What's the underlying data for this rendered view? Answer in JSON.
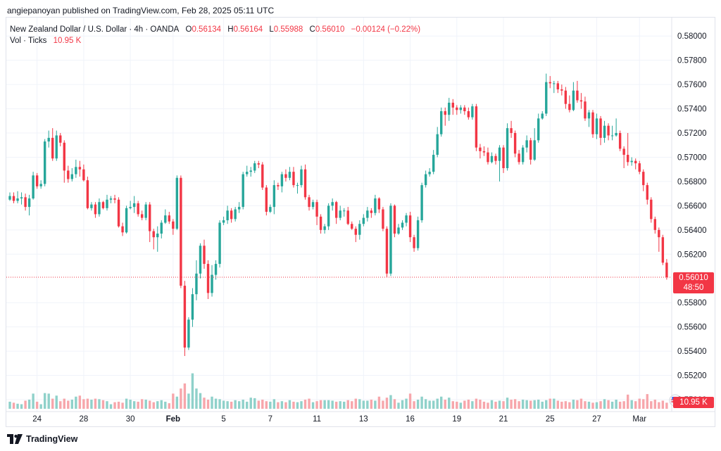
{
  "publisher_line": "angiepanoyan published on TradingView.com, Feb 28, 2025 05:11 UTC",
  "legend": {
    "symbol": "New Zealand Dollar / U.S. Dollar · 4h · OANDA",
    "o_label": "O",
    "o": "0.56134",
    "h_label": "H",
    "h": "0.56164",
    "l_label": "L",
    "l": "0.55988",
    "c_label": "C",
    "c": "0.56010",
    "change": "−0.00124 (−0.22%)",
    "vol_label": "Vol · Ticks",
    "vol_value": "10.95 K"
  },
  "price_tag": {
    "price": "0.56010",
    "countdown": "48:50"
  },
  "vol_tag": "10.95 K",
  "footer": {
    "brand": "TradingView"
  },
  "colors": {
    "up": "#26a69a",
    "down": "#f23645",
    "vol_up": "#8fd1ca",
    "vol_down": "#f7a6ab",
    "grid": "#f0f3fa",
    "axis_text": "#131722"
  },
  "chart_data": {
    "type": "candlestick",
    "timeframe": "4h",
    "ylim": [
      0.55,
      0.581
    ],
    "y_ticks": [
      "0.58000",
      "0.57800",
      "0.57600",
      "0.57400",
      "0.57200",
      "0.57000",
      "0.56800",
      "0.56600",
      "0.56400",
      "0.56200",
      "0.55800",
      "0.55600",
      "0.55400",
      "0.55200",
      "0.55000"
    ],
    "x_ticks": [
      {
        "label": "24",
        "i": 7
      },
      {
        "label": "28",
        "i": 19
      },
      {
        "label": "30",
        "i": 31
      },
      {
        "label": "Feb",
        "i": 42
      },
      {
        "label": "5",
        "i": 55
      },
      {
        "label": "7",
        "i": 67
      },
      {
        "label": "11",
        "i": 79
      },
      {
        "label": "13",
        "i": 91
      },
      {
        "label": "16",
        "i": 103
      },
      {
        "label": "19",
        "i": 115
      },
      {
        "label": "21",
        "i": 127
      },
      {
        "label": "25",
        "i": 139
      },
      {
        "label": "27",
        "i": 151
      },
      {
        "label": "Mar",
        "i": 162
      }
    ],
    "last_price": 0.5601,
    "candles": [
      [
        0.5665,
        0.5668,
        0.5671,
        0.5664,
        28
      ],
      [
        0.5668,
        0.5664,
        0.5671,
        0.5662,
        24
      ],
      [
        0.5664,
        0.5666,
        0.5672,
        0.5662,
        20
      ],
      [
        0.5666,
        0.5667,
        0.5671,
        0.5661,
        18
      ],
      [
        0.5667,
        0.5659,
        0.567,
        0.5656,
        32
      ],
      [
        0.5659,
        0.5666,
        0.5669,
        0.5652,
        36
      ],
      [
        0.5666,
        0.5685,
        0.5688,
        0.5665,
        60
      ],
      [
        0.5685,
        0.5676,
        0.5687,
        0.5674,
        28
      ],
      [
        0.5676,
        0.5678,
        0.5681,
        0.5674,
        18
      ],
      [
        0.5678,
        0.5713,
        0.5715,
        0.5676,
        62
      ],
      [
        0.5713,
        0.5716,
        0.5722,
        0.5708,
        60
      ],
      [
        0.5716,
        0.5699,
        0.5724,
        0.5697,
        40
      ],
      [
        0.5699,
        0.5718,
        0.5722,
        0.5697,
        52
      ],
      [
        0.5718,
        0.5712,
        0.572,
        0.5709,
        30
      ],
      [
        0.5712,
        0.5689,
        0.5714,
        0.5679,
        40
      ],
      [
        0.5689,
        0.5682,
        0.5693,
        0.5679,
        32
      ],
      [
        0.5682,
        0.5686,
        0.5691,
        0.568,
        36
      ],
      [
        0.5686,
        0.5692,
        0.5698,
        0.5683,
        48
      ],
      [
        0.5692,
        0.569,
        0.5697,
        0.5684,
        52
      ],
      [
        0.569,
        0.5681,
        0.5694,
        0.568,
        38
      ],
      [
        0.5681,
        0.5658,
        0.5684,
        0.5657,
        40
      ],
      [
        0.5658,
        0.5661,
        0.5663,
        0.5656,
        36
      ],
      [
        0.5661,
        0.5653,
        0.5663,
        0.565,
        40
      ],
      [
        0.5653,
        0.5663,
        0.5666,
        0.5651,
        38
      ],
      [
        0.5663,
        0.5658,
        0.5664,
        0.5657,
        34
      ],
      [
        0.5658,
        0.5665,
        0.5669,
        0.5656,
        30
      ],
      [
        0.5665,
        0.5666,
        0.5668,
        0.5662,
        18
      ],
      [
        0.5666,
        0.5665,
        0.5669,
        0.5662,
        26
      ],
      [
        0.5665,
        0.5643,
        0.5667,
        0.5642,
        28
      ],
      [
        0.5643,
        0.5638,
        0.5646,
        0.5635,
        24
      ],
      [
        0.5638,
        0.5658,
        0.566,
        0.5637,
        40
      ],
      [
        0.5658,
        0.5659,
        0.5664,
        0.5657,
        36
      ],
      [
        0.5659,
        0.5662,
        0.5668,
        0.5654,
        30
      ],
      [
        0.5662,
        0.5653,
        0.5664,
        0.5651,
        28
      ],
      [
        0.5653,
        0.565,
        0.5656,
        0.5648,
        38
      ],
      [
        0.565,
        0.5661,
        0.5663,
        0.5648,
        36
      ],
      [
        0.5661,
        0.5639,
        0.5663,
        0.563,
        32
      ],
      [
        0.5639,
        0.5634,
        0.5641,
        0.5624,
        26
      ],
      [
        0.5634,
        0.5637,
        0.5643,
        0.5622,
        30
      ],
      [
        0.5637,
        0.5646,
        0.5648,
        0.5633,
        34
      ],
      [
        0.5646,
        0.5652,
        0.5657,
        0.5645,
        28
      ],
      [
        0.5652,
        0.5647,
        0.5655,
        0.5645,
        22
      ],
      [
        0.5647,
        0.5641,
        0.5649,
        0.5636,
        60
      ],
      [
        0.5641,
        0.5683,
        0.5685,
        0.564,
        48
      ],
      [
        0.5683,
        0.5594,
        0.5685,
        0.5592,
        80
      ],
      [
        0.5594,
        0.5543,
        0.5598,
        0.5536,
        100
      ],
      [
        0.5543,
        0.5566,
        0.5568,
        0.5541,
        60
      ],
      [
        0.5566,
        0.5587,
        0.5592,
        0.556,
        140
      ],
      [
        0.5587,
        0.5604,
        0.5615,
        0.5582,
        80
      ],
      [
        0.5604,
        0.5627,
        0.5629,
        0.56,
        62
      ],
      [
        0.5627,
        0.5612,
        0.5632,
        0.5608,
        44
      ],
      [
        0.5612,
        0.5588,
        0.5615,
        0.5583,
        36
      ],
      [
        0.5588,
        0.5603,
        0.5611,
        0.5585,
        48
      ],
      [
        0.5603,
        0.5612,
        0.5615,
        0.5599,
        40
      ],
      [
        0.5612,
        0.5646,
        0.5648,
        0.5609,
        38
      ],
      [
        0.5646,
        0.5648,
        0.5651,
        0.5644,
        32
      ],
      [
        0.5648,
        0.5656,
        0.566,
        0.5645,
        30
      ],
      [
        0.5656,
        0.5649,
        0.5658,
        0.5646,
        28
      ],
      [
        0.5649,
        0.5657,
        0.5659,
        0.5647,
        34
      ],
      [
        0.5657,
        0.5659,
        0.5663,
        0.5654,
        30
      ],
      [
        0.5659,
        0.5686,
        0.5688,
        0.5657,
        36
      ],
      [
        0.5686,
        0.5688,
        0.5693,
        0.5684,
        28
      ],
      [
        0.5688,
        0.5689,
        0.5692,
        0.5684,
        44
      ],
      [
        0.5689,
        0.5695,
        0.5697,
        0.5687,
        42
      ],
      [
        0.5695,
        0.5694,
        0.5697,
        0.5691,
        32
      ],
      [
        0.5694,
        0.5675,
        0.5696,
        0.5673,
        36
      ],
      [
        0.5675,
        0.5655,
        0.5677,
        0.5652,
        30
      ],
      [
        0.5655,
        0.5659,
        0.5661,
        0.5654,
        28
      ],
      [
        0.5659,
        0.5677,
        0.5681,
        0.5653,
        38
      ],
      [
        0.5677,
        0.5676,
        0.5679,
        0.5673,
        26
      ],
      [
        0.5676,
        0.5686,
        0.5688,
        0.5671,
        30
      ],
      [
        0.5686,
        0.5683,
        0.569,
        0.568,
        26
      ],
      [
        0.5683,
        0.5688,
        0.5692,
        0.5681,
        34
      ],
      [
        0.5688,
        0.5677,
        0.5692,
        0.5675,
        28
      ],
      [
        0.5677,
        0.5677,
        0.5679,
        0.567,
        26
      ],
      [
        0.5677,
        0.569,
        0.5693,
        0.5675,
        30
      ],
      [
        0.569,
        0.5667,
        0.5694,
        0.5665,
        36
      ],
      [
        0.5667,
        0.5659,
        0.5669,
        0.5656,
        40
      ],
      [
        0.5659,
        0.5663,
        0.5665,
        0.5657,
        26
      ],
      [
        0.5663,
        0.5651,
        0.5665,
        0.5644,
        30
      ],
      [
        0.5651,
        0.564,
        0.5653,
        0.5637,
        34
      ],
      [
        0.564,
        0.5643,
        0.5645,
        0.5637,
        34
      ],
      [
        0.5643,
        0.566,
        0.5662,
        0.564,
        34
      ],
      [
        0.566,
        0.5663,
        0.5666,
        0.5656,
        32
      ],
      [
        0.5663,
        0.565,
        0.5664,
        0.5645,
        28
      ],
      [
        0.565,
        0.5656,
        0.566,
        0.5648,
        30
      ],
      [
        0.5656,
        0.5656,
        0.5658,
        0.5651,
        28
      ],
      [
        0.5656,
        0.5645,
        0.5659,
        0.5644,
        34
      ],
      [
        0.5645,
        0.5641,
        0.5647,
        0.564,
        30
      ],
      [
        0.5641,
        0.5636,
        0.5643,
        0.563,
        40
      ],
      [
        0.5636,
        0.5645,
        0.5648,
        0.5632,
        38
      ],
      [
        0.5645,
        0.565,
        0.5653,
        0.5643,
        32
      ],
      [
        0.565,
        0.5656,
        0.5659,
        0.5647,
        32
      ],
      [
        0.5656,
        0.5654,
        0.5658,
        0.565,
        36
      ],
      [
        0.5654,
        0.5666,
        0.5669,
        0.5652,
        32
      ],
      [
        0.5666,
        0.5657,
        0.5667,
        0.5654,
        48
      ],
      [
        0.5657,
        0.5641,
        0.5659,
        0.5639,
        32
      ],
      [
        0.5641,
        0.5604,
        0.5643,
        0.5601,
        44
      ],
      [
        0.5604,
        0.566,
        0.5662,
        0.5602,
        54
      ],
      [
        0.566,
        0.5637,
        0.5661,
        0.5634,
        38
      ],
      [
        0.5637,
        0.5642,
        0.5645,
        0.5636,
        24
      ],
      [
        0.5642,
        0.5646,
        0.5648,
        0.564,
        34
      ],
      [
        0.5646,
        0.5652,
        0.5654,
        0.5643,
        40
      ],
      [
        0.5652,
        0.5634,
        0.5655,
        0.563,
        60
      ],
      [
        0.5634,
        0.5625,
        0.5636,
        0.5622,
        30
      ],
      [
        0.5625,
        0.5648,
        0.5651,
        0.5623,
        36
      ],
      [
        0.5648,
        0.5677,
        0.5679,
        0.5646,
        48
      ],
      [
        0.5677,
        0.5686,
        0.5689,
        0.5675,
        38
      ],
      [
        0.5686,
        0.5688,
        0.5691,
        0.5684,
        32
      ],
      [
        0.5688,
        0.5702,
        0.5706,
        0.5686,
        32
      ],
      [
        0.5702,
        0.5719,
        0.5725,
        0.57,
        40
      ],
      [
        0.5719,
        0.5738,
        0.5741,
        0.5717,
        48
      ],
      [
        0.5738,
        0.5735,
        0.5741,
        0.5726,
        36
      ],
      [
        0.5735,
        0.5745,
        0.5749,
        0.573,
        44
      ],
      [
        0.5745,
        0.5741,
        0.5748,
        0.5735,
        30
      ],
      [
        0.5741,
        0.5739,
        0.5743,
        0.5735,
        28
      ],
      [
        0.5739,
        0.5741,
        0.5743,
        0.5736,
        24
      ],
      [
        0.5741,
        0.5738,
        0.5743,
        0.5735,
        32
      ],
      [
        0.5738,
        0.5733,
        0.5741,
        0.5731,
        36
      ],
      [
        0.5733,
        0.5742,
        0.5744,
        0.5731,
        30
      ],
      [
        0.5742,
        0.5708,
        0.5744,
        0.5705,
        40
      ],
      [
        0.5708,
        0.5705,
        0.5711,
        0.5699,
        36
      ],
      [
        0.5705,
        0.5704,
        0.5709,
        0.5701,
        28
      ],
      [
        0.5704,
        0.5696,
        0.5708,
        0.5694,
        24
      ],
      [
        0.5696,
        0.5701,
        0.5704,
        0.5695,
        34
      ],
      [
        0.5701,
        0.5697,
        0.5703,
        0.5694,
        28
      ],
      [
        0.5697,
        0.5708,
        0.571,
        0.568,
        32
      ],
      [
        0.5708,
        0.5691,
        0.571,
        0.5687,
        30
      ],
      [
        0.5691,
        0.5724,
        0.5728,
        0.5689,
        44
      ],
      [
        0.5724,
        0.572,
        0.573,
        0.5716,
        36
      ],
      [
        0.572,
        0.5703,
        0.5722,
        0.57,
        38
      ],
      [
        0.5703,
        0.5696,
        0.5706,
        0.5694,
        30
      ],
      [
        0.5696,
        0.5708,
        0.571,
        0.5694,
        36
      ],
      [
        0.5708,
        0.5714,
        0.5718,
        0.5704,
        34
      ],
      [
        0.5714,
        0.5698,
        0.5716,
        0.5694,
        32
      ],
      [
        0.5698,
        0.5714,
        0.5724,
        0.5697,
        34
      ],
      [
        0.5714,
        0.5732,
        0.5736,
        0.5712,
        36
      ],
      [
        0.5732,
        0.5736,
        0.5738,
        0.5731,
        28
      ],
      [
        0.5736,
        0.5762,
        0.5769,
        0.5734,
        34
      ],
      [
        0.5762,
        0.5761,
        0.5767,
        0.5757,
        40
      ],
      [
        0.5761,
        0.5761,
        0.5763,
        0.5753,
        40
      ],
      [
        0.5761,
        0.5756,
        0.5763,
        0.5753,
        32
      ],
      [
        0.5756,
        0.5755,
        0.576,
        0.5751,
        28
      ],
      [
        0.5755,
        0.5744,
        0.5758,
        0.574,
        30
      ],
      [
        0.5744,
        0.5739,
        0.5751,
        0.5737,
        26
      ],
      [
        0.5739,
        0.5755,
        0.5762,
        0.5738,
        36
      ],
      [
        0.5755,
        0.5747,
        0.5763,
        0.5745,
        34
      ],
      [
        0.5747,
        0.5746,
        0.5753,
        0.574,
        40
      ],
      [
        0.5746,
        0.5732,
        0.575,
        0.573,
        30
      ],
      [
        0.5732,
        0.5737,
        0.5739,
        0.5725,
        28
      ],
      [
        0.5737,
        0.5719,
        0.5739,
        0.5716,
        24
      ],
      [
        0.5719,
        0.5732,
        0.5736,
        0.5715,
        26
      ],
      [
        0.5732,
        0.5716,
        0.5734,
        0.571,
        30
      ],
      [
        0.5716,
        0.5726,
        0.573,
        0.5712,
        38
      ],
      [
        0.5726,
        0.5718,
        0.5728,
        0.5714,
        34
      ],
      [
        0.5718,
        0.5718,
        0.5726,
        0.5714,
        28
      ],
      [
        0.5718,
        0.572,
        0.5732,
        0.5717,
        36
      ],
      [
        0.572,
        0.5707,
        0.5722,
        0.5705,
        28
      ],
      [
        0.5707,
        0.5702,
        0.5709,
        0.5691,
        30
      ],
      [
        0.5702,
        0.5696,
        0.572,
        0.5693,
        56
      ],
      [
        0.5696,
        0.5697,
        0.57,
        0.5693,
        34
      ],
      [
        0.5697,
        0.5695,
        0.5699,
        0.569,
        30
      ],
      [
        0.5695,
        0.5688,
        0.5697,
        0.5686,
        40
      ],
      [
        0.5688,
        0.5677,
        0.569,
        0.5672,
        38
      ],
      [
        0.5677,
        0.5665,
        0.5679,
        0.5661,
        58
      ],
      [
        0.5665,
        0.5649,
        0.5667,
        0.5646,
        30
      ],
      [
        0.5649,
        0.564,
        0.5651,
        0.5637,
        36
      ],
      [
        0.564,
        0.5634,
        0.5642,
        0.5622,
        26
      ],
      [
        0.5634,
        0.5613,
        0.5636,
        0.5611,
        32
      ],
      [
        0.5613,
        0.5601,
        0.5616,
        0.5599,
        24
      ]
    ]
  }
}
